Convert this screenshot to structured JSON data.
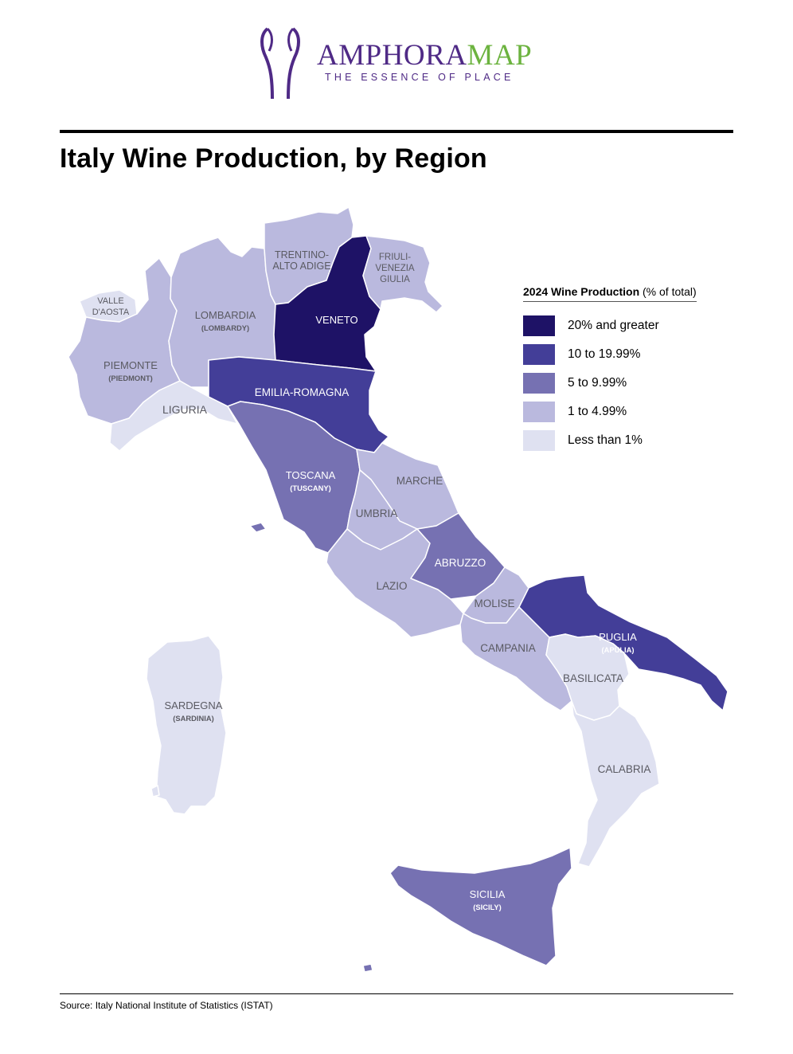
{
  "brand": {
    "name_part1": "AMPHORA",
    "name_part2": "MAP",
    "tagline": "THE ESSENCE OF PLACE",
    "colors": {
      "primary": "#4f2a86",
      "accent": "#6cb33f"
    }
  },
  "title": "Italy Wine Production, by Region",
  "legend": {
    "title_bold": "2024 Wine Production",
    "title_rest": " (% of total)",
    "classes": [
      {
        "label": "20% and greater",
        "color": "#1e1266"
      },
      {
        "label": "10 to 19.99%",
        "color": "#433e98"
      },
      {
        "label": "5 to 9.99%",
        "color": "#7671b2"
      },
      {
        "label": "1 to 4.99%",
        "color": "#bab9de"
      },
      {
        "label": "Less than 1%",
        "color": "#dfe1f1"
      }
    ]
  },
  "regions": [
    {
      "name": "VALLE D'AOSTA",
      "lines": [
        "VALLE",
        "D'AOSTA"
      ],
      "class": 4
    },
    {
      "name": "PIEMONTE",
      "lines": [
        "PIEMONTE",
        "(PIEDMONT)"
      ],
      "class": 3
    },
    {
      "name": "LIGURIA",
      "lines": [
        "LIGURIA"
      ],
      "class": 4
    },
    {
      "name": "LOMBARDIA",
      "lines": [
        "LOMBARDIA",
        "(LOMBARDY)"
      ],
      "class": 3
    },
    {
      "name": "TRENTINO-ALTO ADIGE",
      "lines": [
        "TRENTINO-",
        "ALTO ADIGE"
      ],
      "class": 3
    },
    {
      "name": "VENETO",
      "lines": [
        "VENETO"
      ],
      "class": 0
    },
    {
      "name": "FRIULI-VENEZIA GIULIA",
      "lines": [
        "FRIULI-",
        "VENEZIA",
        "GIULIA"
      ],
      "class": 3
    },
    {
      "name": "EMILIA-ROMAGNA",
      "lines": [
        "EMILIA-ROMAGNA"
      ],
      "class": 1
    },
    {
      "name": "TOSCANA",
      "lines": [
        "TOSCANA",
        "(TUSCANY)"
      ],
      "class": 2
    },
    {
      "name": "MARCHE",
      "lines": [
        "MARCHE"
      ],
      "class": 3
    },
    {
      "name": "UMBRIA",
      "lines": [
        "UMBRIA"
      ],
      "class": 3
    },
    {
      "name": "LAZIO",
      "lines": [
        "LAZIO"
      ],
      "class": 3
    },
    {
      "name": "ABRUZZO",
      "lines": [
        "ABRUZZO"
      ],
      "class": 2
    },
    {
      "name": "MOLISE",
      "lines": [
        "MOLISE"
      ],
      "class": 3
    },
    {
      "name": "CAMPANIA",
      "lines": [
        "CAMPANIA"
      ],
      "class": 3
    },
    {
      "name": "PUGLIA",
      "lines": [
        "PUGLIA",
        "(APULIA)"
      ],
      "class": 1
    },
    {
      "name": "BASILICATA",
      "lines": [
        "BASILICATA"
      ],
      "class": 4
    },
    {
      "name": "CALABRIA",
      "lines": [
        "CALABRIA"
      ],
      "class": 4
    },
    {
      "name": "SARDEGNA",
      "lines": [
        "SARDEGNA",
        "(SARDINIA)"
      ],
      "class": 4
    },
    {
      "name": "SICILIA",
      "lines": [
        "SICILIA",
        "(SICILY)"
      ],
      "class": 2
    }
  ],
  "label_colors": {
    "light_bg": "#5a5a62",
    "dark_bg": "#ffffff"
  },
  "source": "Source: Italy National Institute of Statistics (ISTAT)"
}
